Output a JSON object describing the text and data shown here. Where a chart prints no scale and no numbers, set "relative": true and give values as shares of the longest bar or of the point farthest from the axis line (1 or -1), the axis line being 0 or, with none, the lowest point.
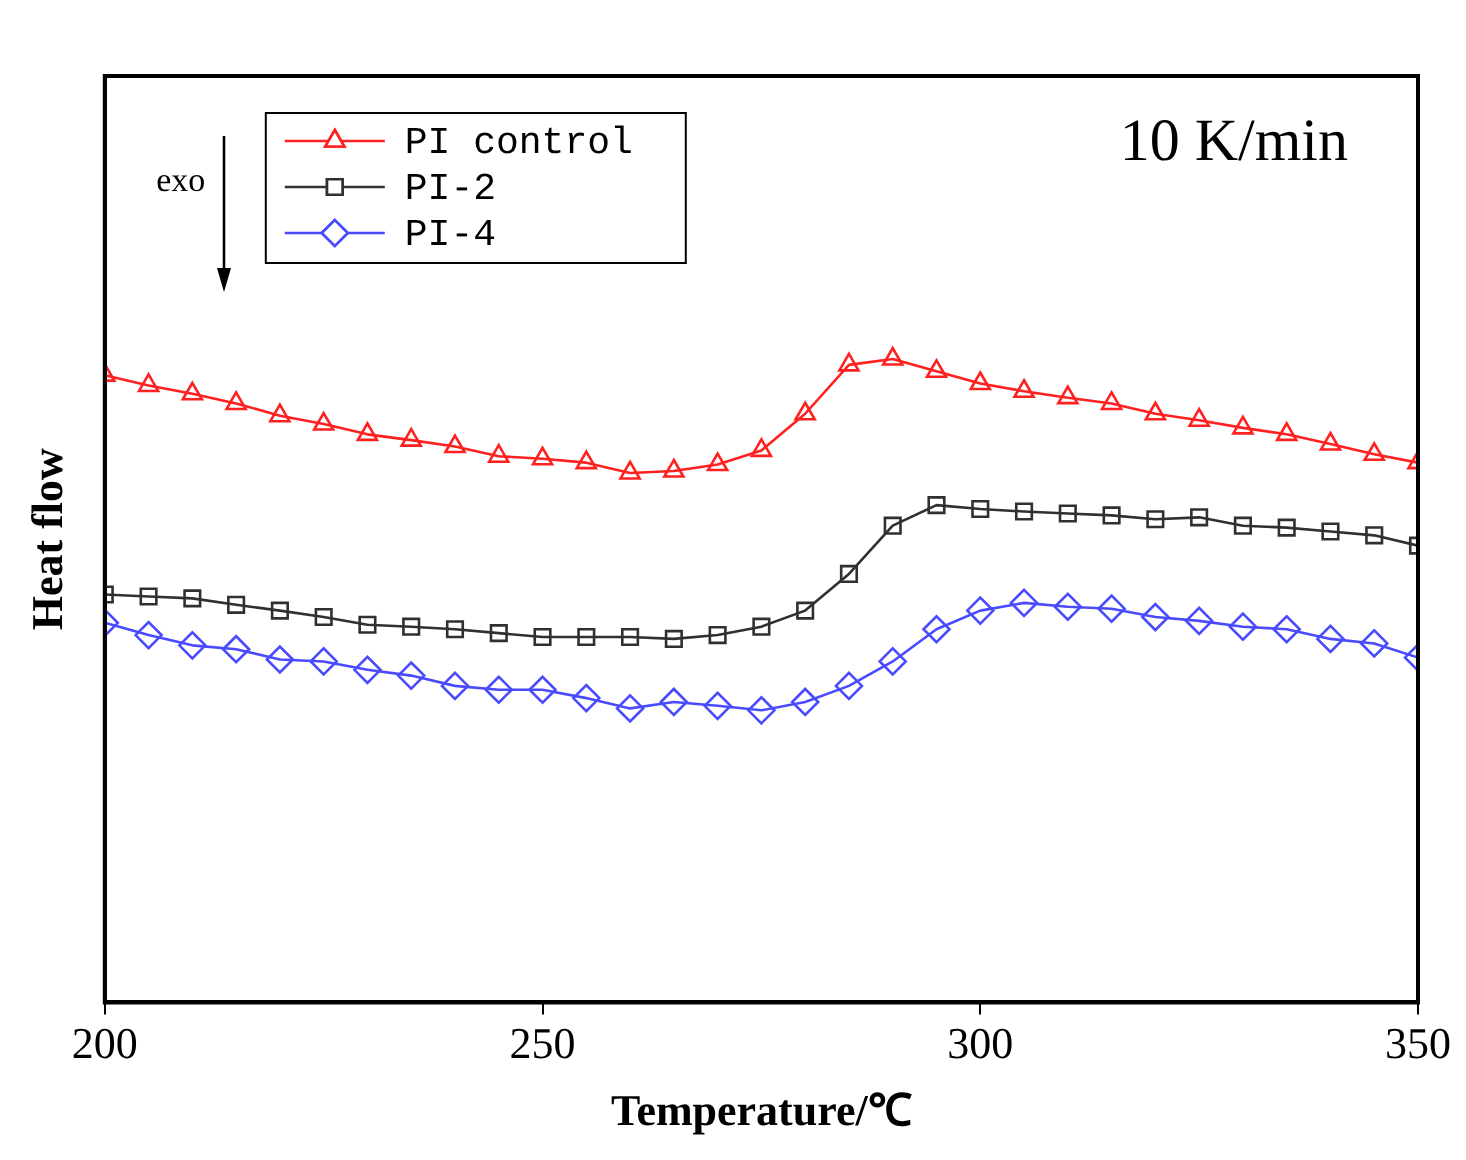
{
  "chart_data": {
    "type": "line",
    "xlabel": "Temperature/℃",
    "ylabel": "Heat flow",
    "relative": true,
    "legend": "top left",
    "annotations": [
      "10 K/min",
      "exo"
    ],
    "xlim": [
      200,
      350
    ],
    "xticks": [
      200,
      250,
      300,
      350
    ],
    "x": [
      200,
      205,
      210,
      215,
      220,
      225,
      230,
      235,
      240,
      245,
      250,
      255,
      260,
      265,
      270,
      275,
      280,
      285,
      290,
      295,
      300,
      305,
      310,
      315,
      320,
      325,
      330,
      335,
      340,
      345,
      350
    ],
    "series": [
      {
        "name": "PI control",
        "color": "#ff2020",
        "marker": "triangle",
        "values": [
          0.975,
          0.959,
          0.946,
          0.931,
          0.912,
          0.899,
          0.883,
          0.874,
          0.864,
          0.849,
          0.845,
          0.839,
          0.823,
          0.826,
          0.836,
          0.858,
          0.915,
          0.991,
          1,
          0.981,
          0.962,
          0.95,
          0.94,
          0.931,
          0.915,
          0.905,
          0.893,
          0.883,
          0.868,
          0.852,
          0.839
        ]
      },
      {
        "name": "PI-2",
        "color": "#303030",
        "marker": "square",
        "values": [
          0.634,
          0.631,
          0.628,
          0.618,
          0.609,
          0.599,
          0.587,
          0.584,
          0.58,
          0.574,
          0.568,
          0.568,
          0.568,
          0.565,
          0.571,
          0.584,
          0.609,
          0.666,
          0.741,
          0.773,
          0.767,
          0.763,
          0.76,
          0.757,
          0.751,
          0.754,
          0.741,
          0.738,
          0.732,
          0.726,
          0.71
        ]
      },
      {
        "name": "PI-4",
        "color": "#4a4aff",
        "marker": "diamond",
        "values": [
          0.59,
          0.571,
          0.555,
          0.549,
          0.533,
          0.53,
          0.517,
          0.508,
          0.492,
          0.486,
          0.486,
          0.473,
          0.457,
          0.467,
          0.461,
          0.454,
          0.467,
          0.492,
          0.53,
          0.58,
          0.609,
          0.621,
          0.615,
          0.612,
          0.599,
          0.593,
          0.584,
          0.58,
          0.565,
          0.558,
          0.536
        ]
      }
    ]
  }
}
